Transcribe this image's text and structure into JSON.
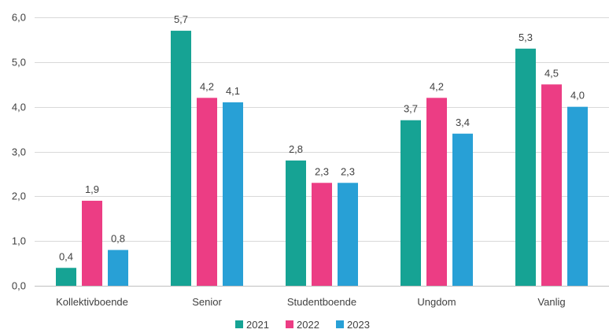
{
  "chart_data": {
    "type": "bar",
    "categories": [
      "Kollektivboende",
      "Senior",
      "Studentboende",
      "Ungdom",
      "Vanlig"
    ],
    "series": [
      {
        "name": "2021",
        "color": "#16a394",
        "values": [
          0.4,
          5.7,
          2.8,
          3.7,
          5.3
        ],
        "labels": [
          "0,4",
          "5,7",
          "2,8",
          "3,7",
          "5,3"
        ]
      },
      {
        "name": "2022",
        "color": "#ec3d84",
        "values": [
          1.9,
          4.2,
          2.3,
          4.2,
          4.5
        ],
        "labels": [
          "1,9",
          "4,2",
          "2,3",
          "4,2",
          "4,5"
        ]
      },
      {
        "name": "2023",
        "color": "#28a0d6",
        "values": [
          0.8,
          4.1,
          2.3,
          3.4,
          4.0
        ],
        "labels": [
          "0,8",
          "4,1",
          "2,3",
          "3,4",
          "4,0"
        ]
      }
    ],
    "y_ticks": [
      0,
      1,
      2,
      3,
      4,
      5,
      6
    ],
    "y_tick_labels": [
      "0,0",
      "1,0",
      "2,0",
      "3,0",
      "4,0",
      "5,0",
      "6,0"
    ],
    "ylim": [
      0,
      6
    ],
    "grid": true,
    "legend_position": "bottom"
  }
}
